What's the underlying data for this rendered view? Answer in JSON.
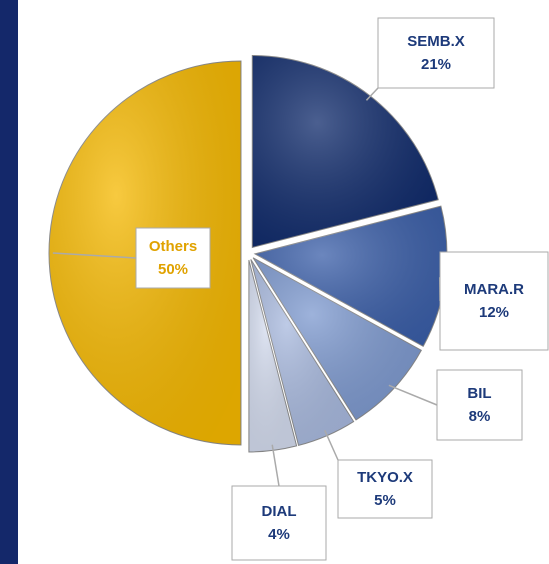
{
  "chart_data": {
    "type": "pie",
    "categories": [
      "SEMB.X",
      "MARA.R",
      "BIL",
      "TKYO.X",
      "DIAL",
      "Others"
    ],
    "values": [
      21,
      12,
      8,
      5,
      4,
      50
    ],
    "value_labels": [
      "21%",
      "12%",
      "8%",
      "5%",
      "4%",
      "50%"
    ],
    "colors": [
      "#0f2a6b",
      "#3a5ea8",
      "#7d99cf",
      "#a8b9de",
      "#d3dbee",
      "#f5b800"
    ]
  }
}
